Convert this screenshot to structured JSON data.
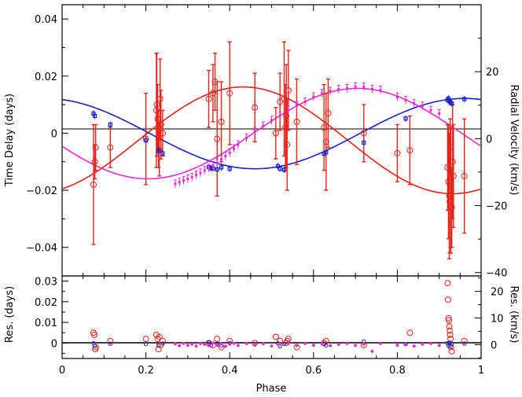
{
  "chart_data": [
    {
      "panel": "main",
      "type": "scatter",
      "xlabel": "Phase",
      "ylabel_left": "Time Delay (days)",
      "ylabel_right": "Radial Velocity (km/s)",
      "xlim": [
        0,
        1
      ],
      "ylim_left": [
        -0.05,
        0.045
      ],
      "ylim_right": [
        -41,
        40
      ],
      "x_ticks": [
        "0",
        "0.2",
        "0.4",
        "0.6",
        "0.8",
        "1"
      ],
      "y_ticks_left": [
        "−0.04",
        "−0.02",
        "0",
        "0.02",
        "0.04"
      ],
      "y_ticks_right": [
        "−40",
        "−20",
        "0",
        "20"
      ],
      "colors": {
        "time_delay": "#e8241a",
        "rv_primary": "#1a22c8",
        "rv_secondary": "#ee2ad2",
        "axes": "#000000"
      },
      "series": [
        {
          "axis": "left",
          "marker": "open-circle-errorbar",
          "color": "#e8241a",
          "x": [
            0.075,
            0.078,
            0.08,
            0.115,
            0.2,
            0.225,
            0.226,
            0.228,
            0.23,
            0.232,
            0.234,
            0.236,
            0.24,
            0.35,
            0.36,
            0.365,
            0.37,
            0.38,
            0.4,
            0.46,
            0.51,
            0.52,
            0.53,
            0.533,
            0.535,
            0.537,
            0.54,
            0.56,
            0.625,
            0.63,
            0.635,
            0.72,
            0.8,
            0.83,
            0.92,
            0.922,
            0.924,
            0.925,
            0.926,
            0.928,
            0.93,
            0.932,
            0.934,
            0.96
          ],
          "y": [
            -0.018,
            -0.01,
            -0.005,
            -0.005,
            -0.002,
            0.008,
            0.01,
            0.005,
            -0.002,
            -0.006,
            0.012,
            0.003,
            0.0,
            0.012,
            0.014,
            0.018,
            -0.002,
            0.004,
            0.014,
            0.009,
            0.0,
            0.011,
            0.012,
            0.002,
            0.006,
            -0.004,
            0.015,
            0.004,
            0.002,
            -0.003,
            0.007,
            0.0,
            -0.007,
            -0.006,
            -0.012,
            -0.017,
            -0.022,
            -0.024,
            -0.005,
            -0.02,
            -0.026,
            -0.01,
            -0.015,
            -0.015
          ],
          "yerr": [
            0.021,
            0.006,
            0.008,
            0.007,
            0.016,
            0.02,
            0.018,
            0.012,
            0.01,
            0.009,
            0.014,
            0.012,
            0.008,
            0.01,
            0.01,
            0.01,
            0.02,
            0.014,
            0.018,
            0.012,
            0.009,
            0.01,
            0.02,
            0.015,
            0.018,
            0.016,
            0.014,
            0.015,
            0.015,
            0.017,
            0.012,
            0.01,
            0.01,
            0.012,
            0.015,
            0.02,
            0.022,
            0.018,
            0.01,
            0.022,
            0.014,
            0.02,
            0.018,
            0.02
          ]
        },
        {
          "axis": "right",
          "marker": "small-square-errorbar",
          "color": "#1a22c8",
          "x": [
            0.075,
            0.078,
            0.115,
            0.2,
            0.23,
            0.24,
            0.35,
            0.355,
            0.36,
            0.37,
            0.38,
            0.4,
            0.515,
            0.52,
            0.53,
            0.625,
            0.63,
            0.72,
            0.82,
            0.92,
            0.922,
            0.925,
            0.927,
            0.93,
            0.96
          ],
          "y": [
            7.5,
            6.8,
            4.2,
            -0.5,
            -3.5,
            -4.4,
            -8.5,
            -8.8,
            -8.9,
            -9.2,
            -8.6,
            -9.0,
            -8.2,
            -9.0,
            -9.3,
            -4.5,
            -4.1,
            -1.2,
            6.0,
            11.5,
            12.0,
            11.2,
            10.8,
            10.5,
            11.8
          ]
        },
        {
          "axis": "right",
          "marker": "small-dot-errorbar",
          "color": "#ee2ad2",
          "x": [
            0.27,
            0.28,
            0.29,
            0.3,
            0.31,
            0.32,
            0.33,
            0.34,
            0.35,
            0.36,
            0.37,
            0.38,
            0.39,
            0.4,
            0.41,
            0.42,
            0.44,
            0.46,
            0.48,
            0.5,
            0.52,
            0.54,
            0.56,
            0.58,
            0.6,
            0.62,
            0.64,
            0.66,
            0.68,
            0.7,
            0.72,
            0.74,
            0.76,
            0.8,
            0.82,
            0.84,
            0.86,
            0.88,
            0.9
          ],
          "y": [
            -13.5,
            -13.0,
            -12.5,
            -12.0,
            -11.5,
            -10.8,
            -10.2,
            -9.5,
            -8.8,
            -8.0,
            -7.2,
            -6.2,
            -5.2,
            -4.2,
            -3.0,
            -1.8,
            0.2,
            2.2,
            3.8,
            5.5,
            6.8,
            8.5,
            10.0,
            11.0,
            12.5,
            13.5,
            14.2,
            14.8,
            15.0,
            15.5,
            15.5,
            14.8,
            14.5,
            12.5,
            11.5,
            10.5,
            9.8,
            8.5,
            7.5
          ]
        }
      ],
      "models": [
        {
          "axis": "left",
          "color": "#e8241a",
          "shape": "sine",
          "mean": -0.0025,
          "amplitude": 0.0187,
          "peak_phase": 0.432
        },
        {
          "axis": "right",
          "color": "#1a22c8",
          "shape": "sine",
          "mean": 1.5,
          "amplitude": 10.5,
          "peak_phase": 0.96
        },
        {
          "axis": "right",
          "color": "#ee2ad2",
          "shape": "sine",
          "mean": 1.5,
          "amplitude": 13.5,
          "peak_phase": 0.705
        }
      ]
    },
    {
      "panel": "residuals",
      "type": "scatter",
      "xlabel": "Phase",
      "ylabel_left": "Res. (days)",
      "ylabel_right": "Res. (km/s)",
      "xlim": [
        0,
        1
      ],
      "ylim_left": [
        -0.0075,
        0.0325
      ],
      "ylim_right": [
        -5.2,
        25.8
      ],
      "y_ticks_left": [
        "0",
        "0.01",
        "0.02",
        "0.03"
      ],
      "y_ticks_right": [
        "0",
        "10",
        "20"
      ],
      "series": [
        {
          "axis": "left",
          "marker": "open-circle",
          "color": "#e8241a",
          "x": [
            0.075,
            0.077,
            0.079,
            0.08,
            0.115,
            0.2,
            0.225,
            0.228,
            0.23,
            0.232,
            0.235,
            0.24,
            0.35,
            0.36,
            0.37,
            0.38,
            0.4,
            0.46,
            0.51,
            0.52,
            0.535,
            0.537,
            0.54,
            0.56,
            0.625,
            0.63,
            0.72,
            0.83,
            0.92,
            0.921,
            0.922,
            0.923,
            0.924,
            0.925,
            0.926,
            0.927,
            0.928,
            0.93,
            0.96
          ],
          "y": [
            0.005,
            0.004,
            -0.003,
            -0.002,
            0.001,
            0.002,
            0.004,
            0.002,
            -0.003,
            0.003,
            -0.001,
            0.001,
            0.0,
            -0.001,
            0.002,
            -0.002,
            0.001,
            0.0,
            0.003,
            0.001,
            0.0,
            0.001,
            0.002,
            -0.002,
            0.0,
            0.001,
            -0.001,
            0.005,
            0.029,
            0.021,
            0.012,
            0.011,
            0.008,
            0.006,
            0.004,
            0.002,
            -0.002,
            -0.004,
            0.001
          ]
        },
        {
          "axis": "right",
          "marker": "open-circle-small",
          "color": "#1a22c8",
          "x": [
            0.075,
            0.078,
            0.115,
            0.2,
            0.23,
            0.24,
            0.35,
            0.355,
            0.37,
            0.38,
            0.4,
            0.515,
            0.52,
            0.53,
            0.625,
            0.63,
            0.72,
            0.82,
            0.92,
            0.922,
            0.925,
            0.927,
            0.93,
            0.96
          ],
          "y": [
            0.5,
            -0.5,
            0.3,
            0.2,
            -0.3,
            0.4,
            0.8,
            -0.2,
            0.3,
            -0.4,
            0.6,
            0.5,
            -0.6,
            0.3,
            0.4,
            -0.3,
            1.2,
            0.2,
            0.5,
            -0.4,
            0.8,
            -0.6,
            0.3,
            0.4
          ]
        },
        {
          "axis": "right",
          "marker": "filled-dot",
          "color": "#ee2ad2",
          "x": [
            0.27,
            0.28,
            0.29,
            0.3,
            0.31,
            0.32,
            0.33,
            0.34,
            0.35,
            0.36,
            0.37,
            0.38,
            0.39,
            0.4,
            0.41,
            0.42,
            0.44,
            0.46,
            0.48,
            0.5,
            0.52,
            0.54,
            0.56,
            0.58,
            0.6,
            0.62,
            0.64,
            0.66,
            0.68,
            0.7,
            0.72,
            0.74,
            0.76,
            0.8,
            0.82,
            0.84,
            0.86,
            0.88,
            0.9
          ],
          "y": [
            0.3,
            -0.4,
            0.5,
            -0.2,
            0.2,
            -0.5,
            0.4,
            0.1,
            -0.3,
            0.6,
            -0.2,
            0.3,
            -0.6,
            0.2,
            0.5,
            -0.3,
            0.4,
            -0.2,
            0.3,
            -0.5,
            0.2,
            0.6,
            -0.3,
            0.4,
            -0.2,
            0.3,
            -0.4,
            0.1,
            0.5,
            -0.3,
            0.2,
            -2.5,
            0.4,
            -0.2,
            0.3,
            -0.5,
            0.2,
            0.4,
            -0.3
          ]
        }
      ]
    }
  ]
}
